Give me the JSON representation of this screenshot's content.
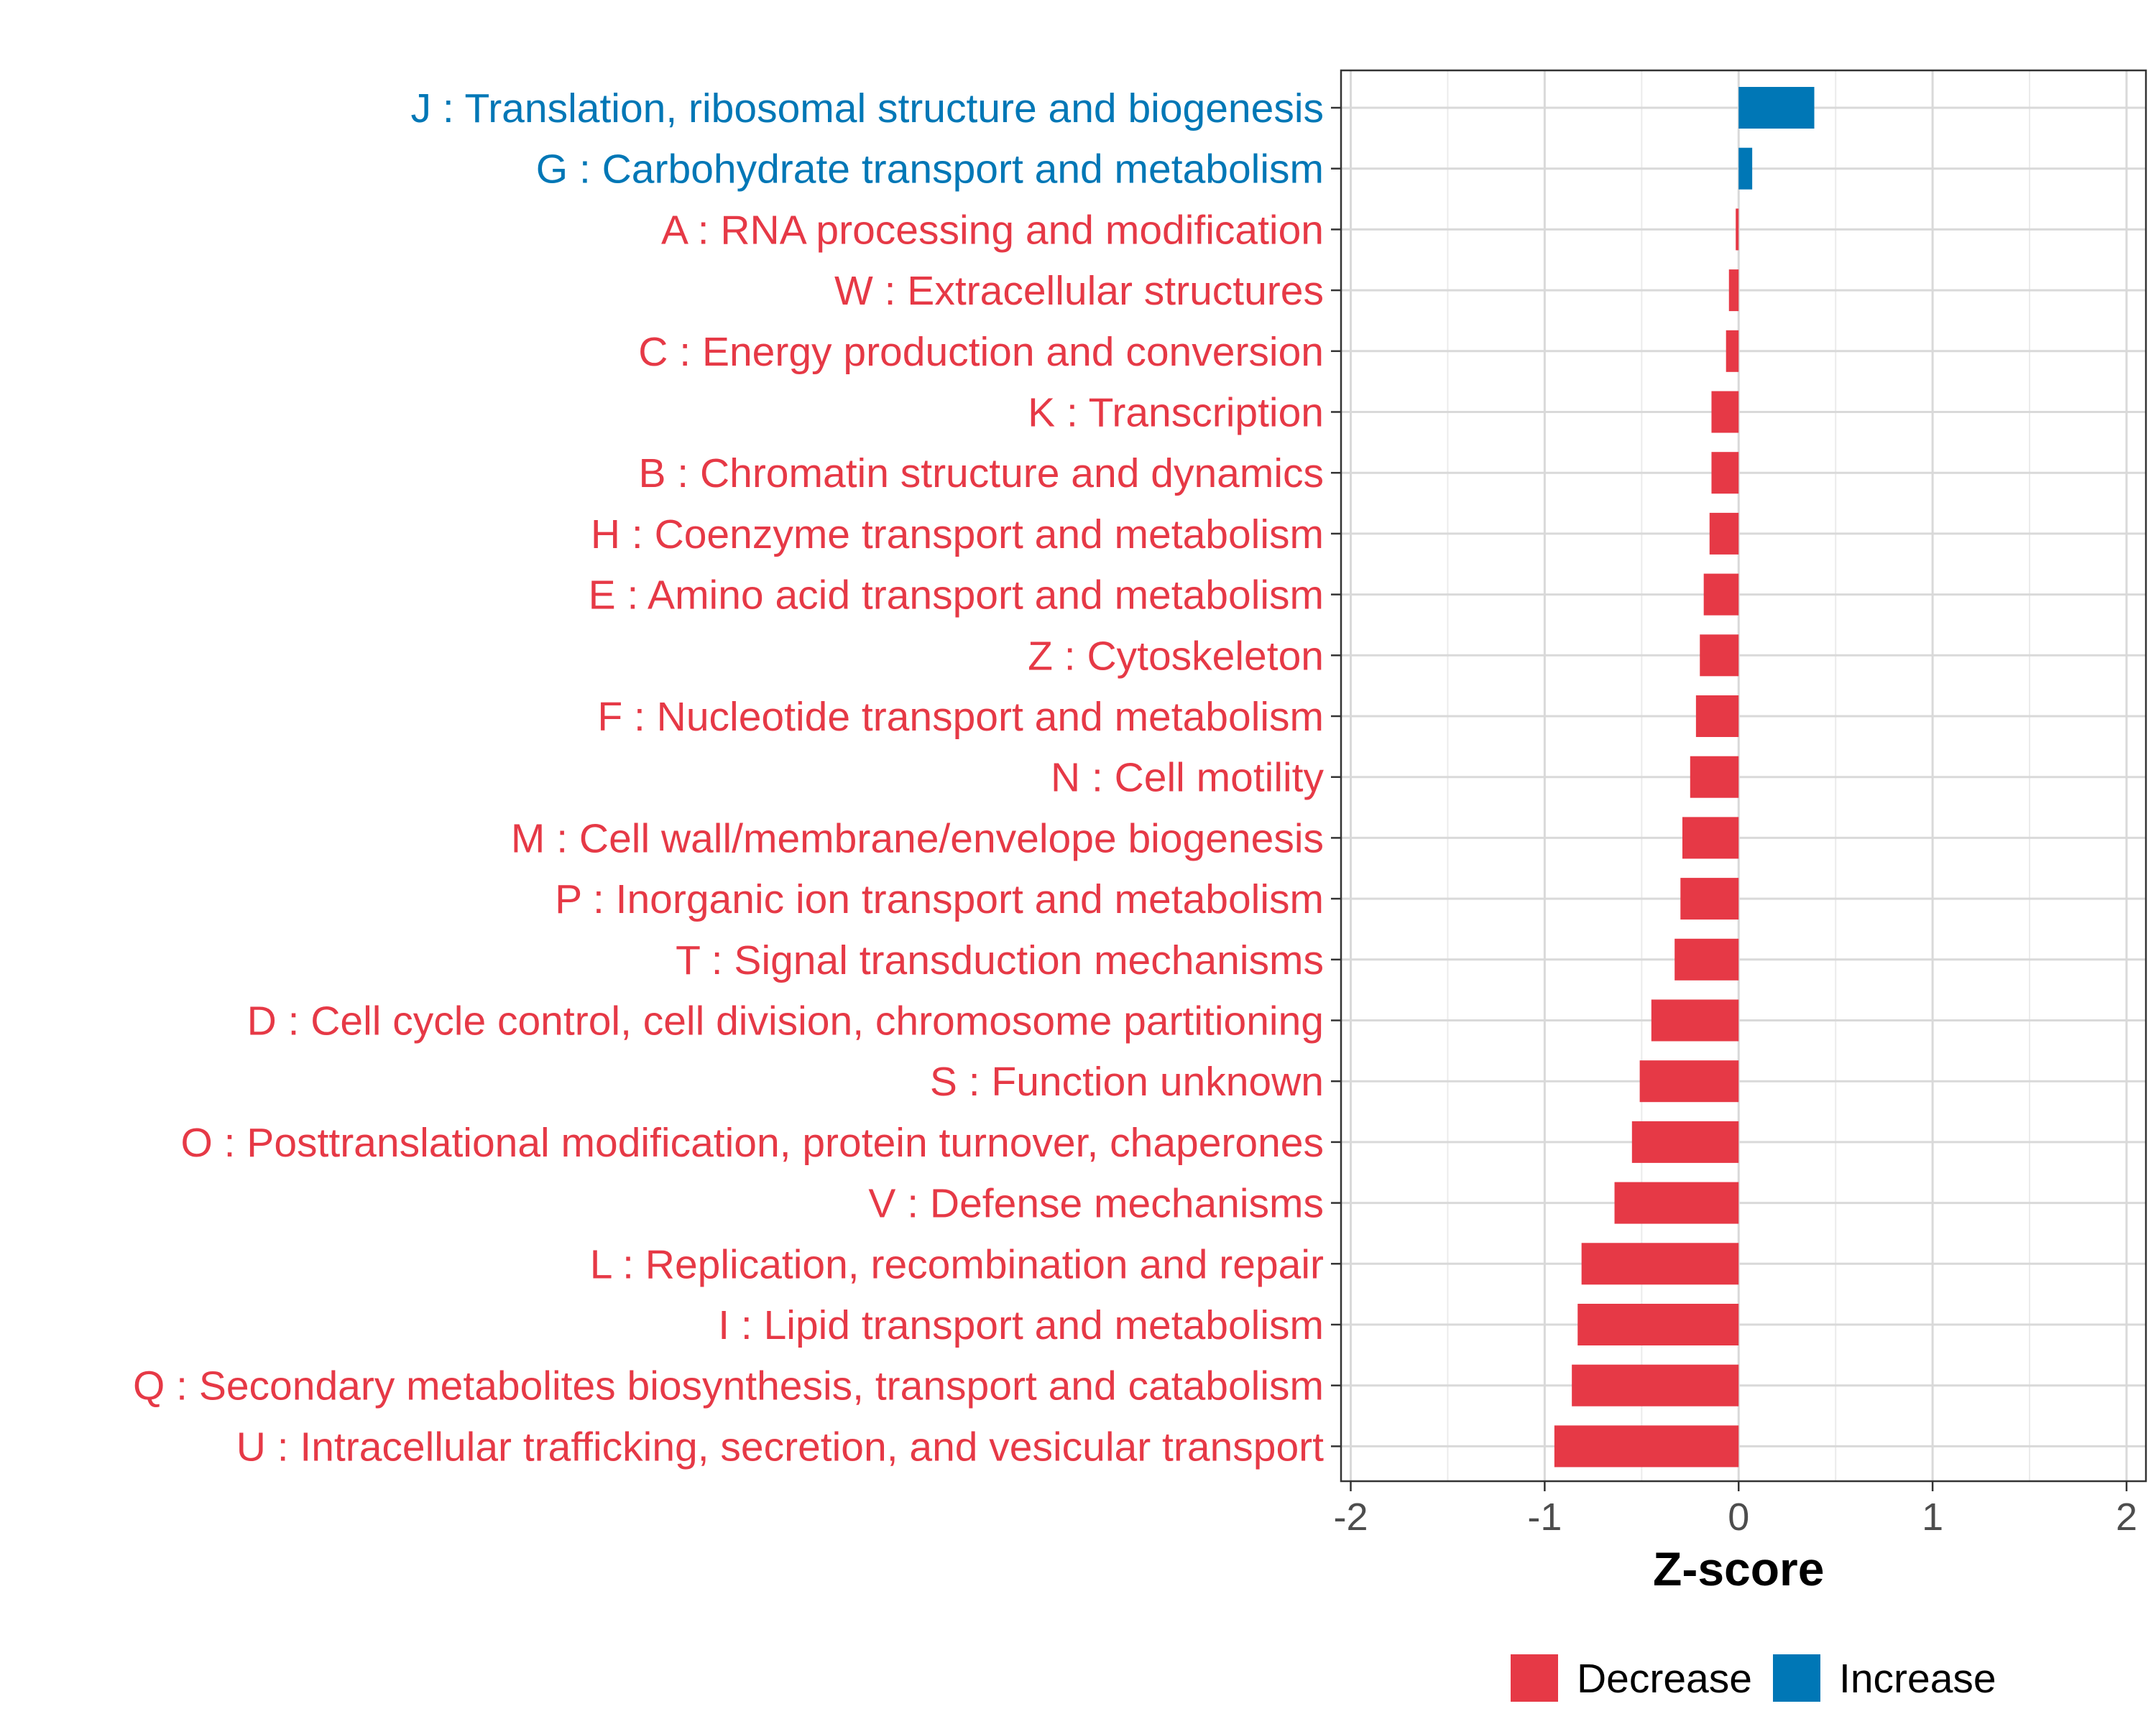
{
  "chart_data": {
    "type": "bar",
    "orientation": "horizontal",
    "title": "",
    "xlabel": "Z-score",
    "ylabel": "",
    "xlim": [
      -2.05,
      2.1
    ],
    "xticks": [
      -2,
      -1,
      0,
      1,
      2
    ],
    "xtick_labels": [
      "-2",
      "-1",
      "0",
      "1",
      "2"
    ],
    "grid": true,
    "legend_position": "bottom",
    "colors": {
      "Decrease": "#E63946",
      "Increase": "#0077B6"
    },
    "legend": [
      {
        "name": "Decrease",
        "color": "#E63946"
      },
      {
        "name": "Increase",
        "color": "#0077B6"
      }
    ],
    "categories": [
      "J : Translation, ribosomal structure and biogenesis",
      "G : Carbohydrate transport and metabolism",
      "A : RNA processing and modification",
      "W : Extracellular structures",
      "C : Energy production and conversion",
      "K : Transcription",
      "B : Chromatin structure and dynamics",
      "H : Coenzyme transport and metabolism",
      "E : Amino acid transport and metabolism",
      "Z : Cytoskeleton",
      "F : Nucleotide transport and metabolism",
      "N : Cell motility",
      "M : Cell wall/membrane/envelope biogenesis",
      "P : Inorganic ion transport and metabolism",
      "T : Signal transduction mechanisms",
      "D : Cell cycle control, cell division, chromosome partitioning",
      "S : Function unknown",
      "O : Posttranslational modification, protein turnover, chaperones",
      "V : Defense mechanisms",
      "L : Replication, recombination and repair",
      "I : Lipid transport and metabolism",
      "Q : Secondary metabolites biosynthesis, transport and catabolism",
      "U : Intracellular trafficking, secretion, and vesicular transport"
    ],
    "values": [
      0.39,
      0.07,
      -0.015,
      -0.05,
      -0.065,
      -0.14,
      -0.14,
      -0.15,
      -0.18,
      -0.2,
      -0.22,
      -0.25,
      -0.29,
      -0.3,
      -0.33,
      -0.45,
      -0.51,
      -0.55,
      -0.64,
      -0.81,
      -0.83,
      -0.86,
      -0.95
    ],
    "groups": [
      "Increase",
      "Increase",
      "Decrease",
      "Decrease",
      "Decrease",
      "Decrease",
      "Decrease",
      "Decrease",
      "Decrease",
      "Decrease",
      "Decrease",
      "Decrease",
      "Decrease",
      "Decrease",
      "Decrease",
      "Decrease",
      "Decrease",
      "Decrease",
      "Decrease",
      "Decrease",
      "Decrease",
      "Decrease",
      "Decrease"
    ]
  }
}
